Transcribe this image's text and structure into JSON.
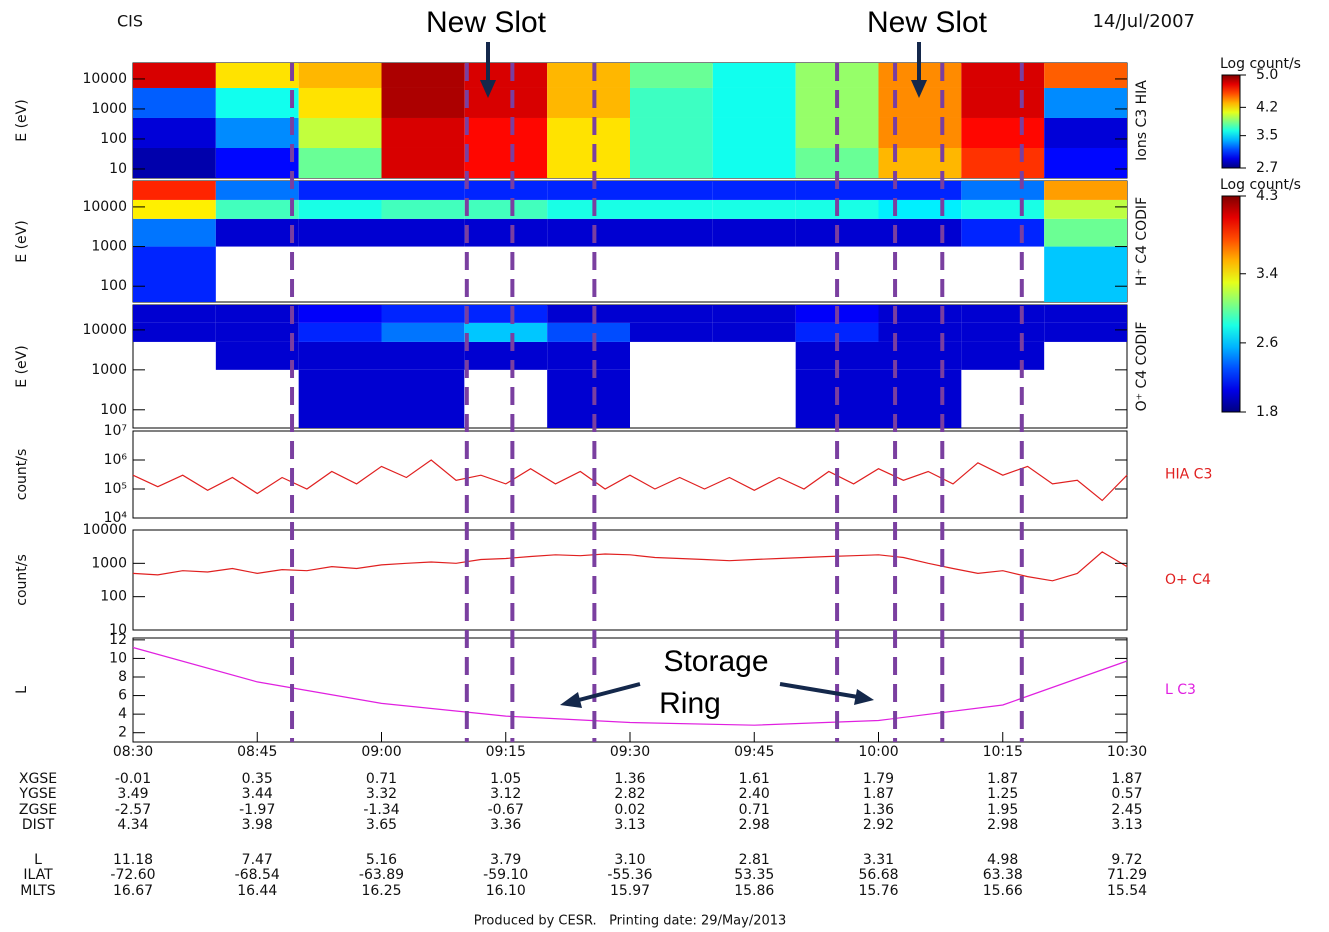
{
  "header": {
    "left": "CIS",
    "right": "14/Jul/2007"
  },
  "annotations": {
    "new_slot": [
      "New Slot",
      "New Slot"
    ],
    "storage_ring": [
      "Storage",
      "Ring"
    ]
  },
  "markers": {
    "x": [
      19.2,
      40.3,
      45.8,
      55.7,
      85,
      92,
      97.7,
      107.3
    ],
    "color": "#7a3fa0"
  },
  "chart_data": [
    {
      "type": "heatmap",
      "ylabel": "E (eV)",
      "side_label": "Ions C3 HIA",
      "ylog": true,
      "xlim": [
        0,
        120
      ],
      "ylim": [
        5,
        34000
      ],
      "yticks": [
        10,
        100,
        1000,
        10000
      ],
      "time_edges": [
        0,
        10,
        20,
        30,
        40,
        50,
        60,
        70,
        80,
        90,
        100,
        110,
        120
      ],
      "energy_edges": [
        5,
        50,
        500,
        5000,
        34000
      ],
      "values": [
        [
          2.8,
          3.0,
          3.8,
          4.8,
          4.7,
          4.2,
          3.7,
          3.6,
          3.8,
          4.3,
          4.6,
          3.0
        ],
        [
          2.9,
          3.3,
          4.0,
          4.8,
          4.7,
          4.2,
          3.7,
          3.6,
          3.9,
          4.4,
          4.7,
          2.9
        ],
        [
          3.2,
          3.6,
          4.2,
          4.9,
          4.8,
          4.3,
          3.7,
          3.6,
          3.9,
          4.4,
          4.8,
          3.3
        ],
        [
          4.8,
          4.2,
          4.3,
          4.9,
          4.8,
          4.3,
          3.8,
          3.6,
          3.9,
          4.4,
          4.8,
          4.5
        ]
      ],
      "colorbar": {
        "label": "Log count/s",
        "lim": [
          2.7,
          5.0
        ],
        "ticks": [
          {
            "value": 5.0,
            "label": "5.0"
          },
          4.2,
          3.5,
          2.7
        ]
      }
    },
    {
      "type": "heatmap",
      "ylabel": "E (eV)",
      "side_label": "H⁺ C4 CODIF",
      "ylog": true,
      "xlim": [
        0,
        120
      ],
      "ylim": [
        40,
        45000
      ],
      "yticks": [
        100,
        1000,
        10000
      ],
      "time_edges": [
        0,
        10,
        20,
        30,
        40,
        50,
        60,
        70,
        80,
        90,
        100,
        110,
        120
      ],
      "energy_edges": [
        40,
        1000,
        5000,
        15000,
        45000
      ],
      "values": [
        [
          2.2,
          null,
          null,
          null,
          null,
          null,
          null,
          null,
          null,
          null,
          null,
          2.6
        ],
        [
          2.4,
          2.0,
          2.0,
          2.0,
          2.0,
          2.0,
          2.0,
          2.0,
          2.0,
          2.0,
          2.2,
          3.0
        ],
        [
          3.4,
          2.9,
          2.8,
          2.9,
          2.9,
          2.8,
          2.8,
          2.8,
          2.8,
          2.7,
          2.8,
          3.2
        ],
        [
          3.9,
          2.4,
          2.2,
          2.2,
          2.2,
          2.2,
          2.2,
          2.2,
          2.2,
          2.2,
          2.4,
          3.6
        ]
      ],
      "colorbar": {
        "label": "Log count/s",
        "lim": [
          1.8,
          4.3
        ],
        "ticks": [
          4.3,
          3.4,
          2.6,
          1.8
        ]
      }
    },
    {
      "type": "heatmap",
      "ylabel": "E (eV)",
      "side_label": "O⁺ C4 CODIF",
      "ylog": true,
      "xlim": [
        0,
        120
      ],
      "ylim": [
        35,
        42000
      ],
      "yticks": [
        100,
        1000,
        10000
      ],
      "time_edges": [
        0,
        10,
        20,
        30,
        40,
        50,
        60,
        70,
        80,
        90,
        100,
        110,
        120
      ],
      "energy_edges": [
        35,
        1000,
        5000,
        15000,
        42000
      ],
      "values": [
        [
          null,
          null,
          2.0,
          2.0,
          null,
          2.0,
          null,
          null,
          2.0,
          2.0,
          null,
          null
        ],
        [
          null,
          2.0,
          2.0,
          2.0,
          2.0,
          2.0,
          null,
          null,
          2.0,
          2.0,
          2.0,
          null
        ],
        [
          2.0,
          2.0,
          2.2,
          2.4,
          2.6,
          2.3,
          2.0,
          2.0,
          2.2,
          2.0,
          2.0,
          2.0
        ],
        [
          2.0,
          2.0,
          2.1,
          2.2,
          2.2,
          2.0,
          2.0,
          2.0,
          2.1,
          2.0,
          2.0,
          2.0
        ]
      ],
      "clim": [
        1.8,
        4.3
      ]
    },
    {
      "type": "line",
      "ylabel": "count/s",
      "side_label": "HIA C3",
      "color": "#e02020",
      "ylog": true,
      "xlim": [
        0,
        120
      ],
      "ylim": [
        10000,
        10000000
      ],
      "yticks": [
        {
          "value": 10000,
          "label": "10⁴"
        },
        {
          "value": 100000,
          "label": "10⁵"
        },
        {
          "value": 1000000,
          "label": "10⁶"
        },
        {
          "value": 10000000,
          "label": "10⁷"
        }
      ],
      "x": [
        0,
        3,
        6,
        9,
        12,
        15,
        18,
        21,
        24,
        27,
        30,
        33,
        36,
        39,
        42,
        45,
        48,
        51,
        54,
        57,
        60,
        63,
        66,
        69,
        72,
        75,
        78,
        81,
        84,
        87,
        90,
        93,
        96,
        99,
        102,
        105,
        108,
        111,
        114,
        117,
        120
      ],
      "values": [
        300000,
        120000,
        300000,
        90000,
        250000,
        70000,
        250000,
        100000,
        400000,
        150000,
        600000,
        250000,
        1000000,
        200000,
        300000,
        150000,
        500000,
        150000,
        400000,
        100000,
        300000,
        100000,
        250000,
        100000,
        250000,
        90000,
        250000,
        100000,
        400000,
        150000,
        500000,
        200000,
        400000,
        150000,
        800000,
        300000,
        600000,
        150000,
        200000,
        40000,
        300000
      ]
    },
    {
      "type": "line",
      "ylabel": "count/s",
      "side_label": "O+ C4",
      "color": "#e02020",
      "ylog": true,
      "xlim": [
        0,
        120
      ],
      "ylim": [
        10,
        10000
      ],
      "yticks": [
        10,
        100,
        1000,
        10000
      ],
      "x": [
        0,
        3,
        6,
        9,
        12,
        15,
        18,
        21,
        24,
        27,
        30,
        33,
        36,
        39,
        42,
        45,
        48,
        51,
        54,
        57,
        60,
        63,
        66,
        69,
        72,
        75,
        78,
        81,
        84,
        87,
        90,
        93,
        96,
        99,
        102,
        105,
        108,
        111,
        114,
        117,
        120
      ],
      "values": [
        500,
        450,
        600,
        550,
        700,
        500,
        650,
        600,
        800,
        700,
        900,
        1000,
        1100,
        1000,
        1300,
        1400,
        1600,
        1800,
        1700,
        1900,
        1800,
        1500,
        1400,
        1300,
        1200,
        1300,
        1400,
        1500,
        1600,
        1700,
        1800,
        1500,
        1000,
        700,
        500,
        600,
        400,
        300,
        500,
        2200,
        800
      ]
    },
    {
      "type": "line",
      "ylabel": "L",
      "side_label": "L C3",
      "color": "#e020e0",
      "ylog": false,
      "xlim": [
        0,
        120
      ],
      "ylim": [
        1,
        12.2
      ],
      "yticks": [
        2,
        4,
        6,
        8,
        10,
        12
      ],
      "x": [
        0,
        15,
        30,
        45,
        60,
        75,
        90,
        105,
        120
      ],
      "values": [
        11.18,
        7.47,
        5.16,
        3.79,
        3.1,
        2.81,
        3.31,
        4.98,
        9.72
      ],
      "xticks": [
        {
          "value": 0,
          "label": "08:30"
        },
        {
          "value": 15,
          "label": "08:45"
        },
        {
          "value": 30,
          "label": "09:00"
        },
        {
          "value": 45,
          "label": "09:15"
        },
        {
          "value": 60,
          "label": "09:30"
        },
        {
          "value": 75,
          "label": "09:45"
        },
        {
          "value": 90,
          "label": "10:00"
        },
        {
          "value": 105,
          "label": "10:15"
        },
        {
          "value": 120,
          "label": "10:30"
        }
      ]
    }
  ],
  "table": {
    "rows": [
      [
        "XGSE",
        "-0.01",
        "0.35",
        "0.71",
        "1.05",
        "1.36",
        "1.61",
        "1.79",
        "1.87",
        "1.87"
      ],
      [
        "YGSE",
        "3.49",
        "3.44",
        "3.32",
        "3.12",
        "2.82",
        "2.40",
        "1.87",
        "1.25",
        "0.57"
      ],
      [
        "ZGSE",
        "-2.57",
        "-1.97",
        "-1.34",
        "-0.67",
        "0.02",
        "0.71",
        "1.36",
        "1.95",
        "2.45"
      ],
      [
        "DIST",
        "4.34",
        "3.98",
        "3.65",
        "3.36",
        "3.13",
        "2.98",
        "2.92",
        "2.98",
        "3.13"
      ],
      [
        "L",
        "11.18",
        "7.47",
        "5.16",
        "3.79",
        "3.10",
        "2.81",
        "3.31",
        "4.98",
        "9.72"
      ],
      [
        "ILAT",
        "-72.60",
        "-68.54",
        "-63.89",
        "-59.10",
        "-55.36",
        "53.35",
        "56.68",
        "63.38",
        "71.29"
      ],
      [
        "MLTS",
        "16.67",
        "16.44",
        "16.25",
        "16.10",
        "15.97",
        "15.86",
        "15.76",
        "15.66",
        "15.54"
      ]
    ]
  },
  "footer": "Produced by CESR.   Printing date: 29/May/2013"
}
